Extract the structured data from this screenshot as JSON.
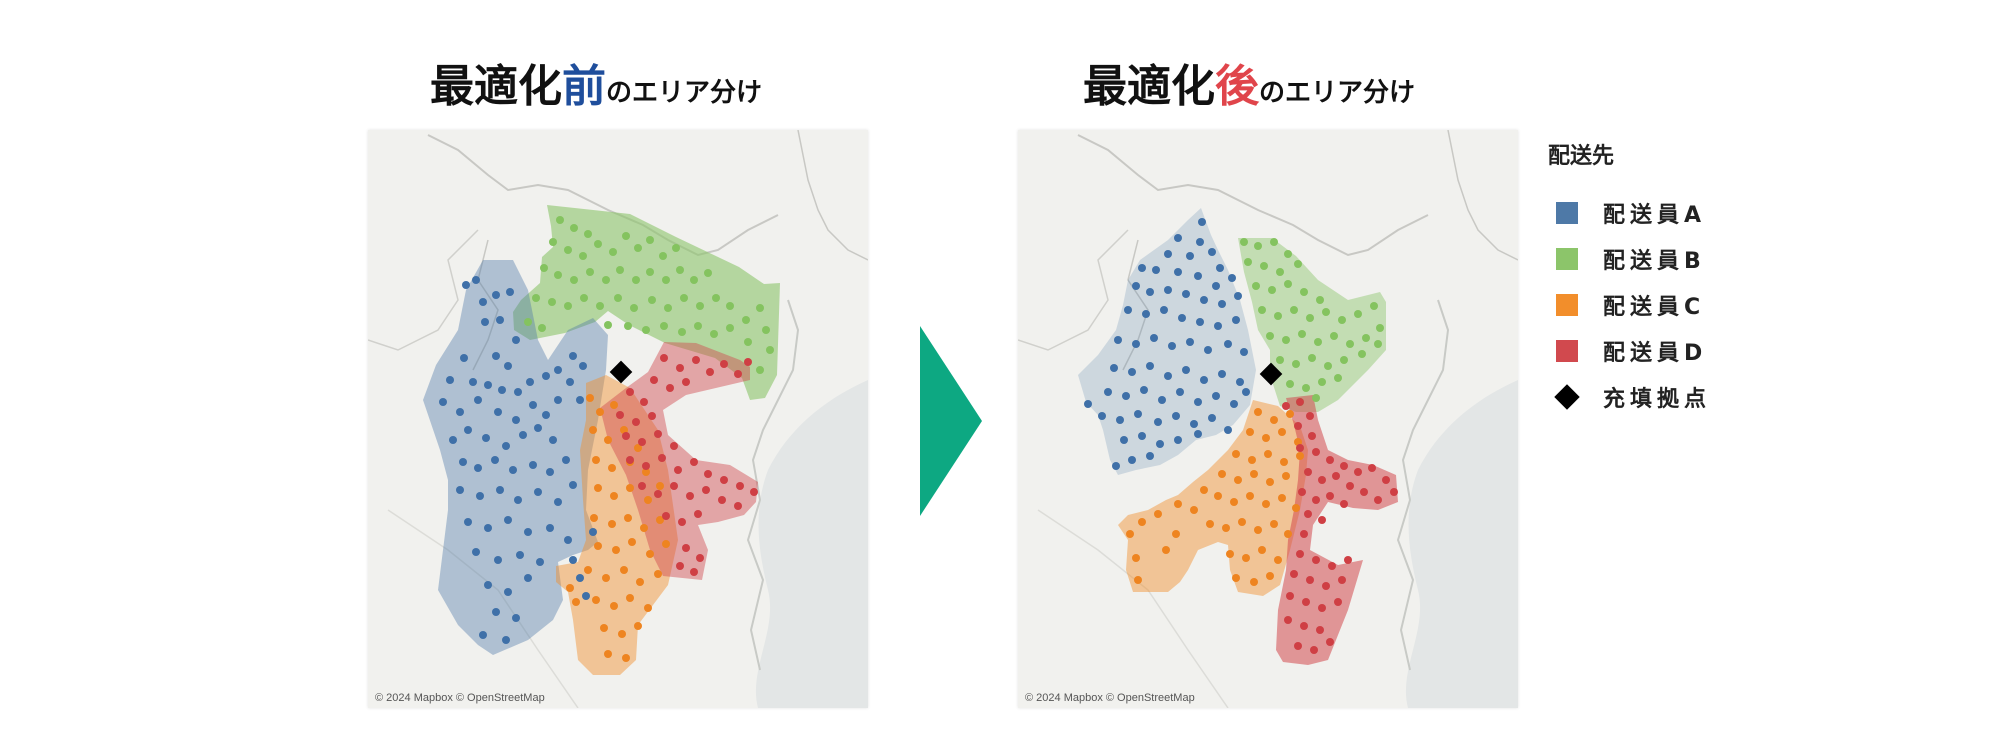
{
  "titles": {
    "before": {
      "prefix": "最適化",
      "keyword": "前",
      "suffix": "のエリア分け"
    },
    "after": {
      "prefix": "最適化",
      "keyword": "後",
      "suffix": "のエリア分け"
    },
    "keyword_colors": {
      "before": "#1f4e9c",
      "after": "#e0454b"
    }
  },
  "maps": {
    "attribution": "© 2024 Mapbox © OpenStreetMap",
    "before": {
      "label": "before"
    },
    "after": {
      "label": "after"
    }
  },
  "legend": {
    "title": "配送先",
    "items": [
      {
        "key": "A",
        "label": "配送員A",
        "color": "#4e79a7"
      },
      {
        "key": "B",
        "label": "配送員B",
        "color": "#8cc56a"
      },
      {
        "key": "C",
        "label": "配送員C",
        "color": "#f28e2b"
      },
      {
        "key": "D",
        "label": "配送員D",
        "color": "#d1494e"
      },
      {
        "key": "depot",
        "label": "充填拠点",
        "icon": "diamond-icon"
      }
    ]
  },
  "arrow": {
    "color": "#0da882",
    "icon": "right-triangle-arrow-icon"
  }
}
